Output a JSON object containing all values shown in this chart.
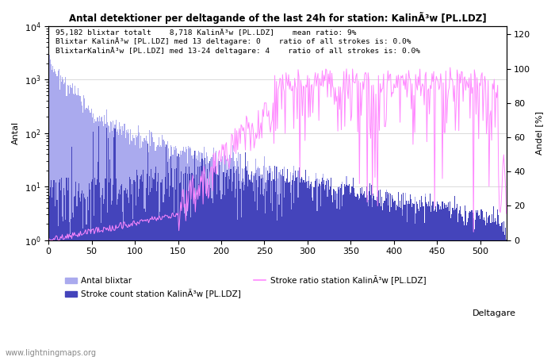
{
  "title": "Antal detektioner per deltagande of the last 24h for station: KalinÃ³w [PL.LDZ]",
  "xlabel": "Deltagare",
  "ylabel_left": "Antal",
  "ylabel_right": "Andel [%]",
  "annotation_lines": [
    "95,182 blixtar totalt    8,718 KalinÃ³w [PL.LDZ]    mean ratio: 9%",
    "Blixtar KalinÃ³w [PL.LDZ] med 13 deltagare: 0    ratio of all strokes is: 0.0%",
    "BlixtarKalinÃ³w [PL.LDZ] med 13-24 deltagare: 4    ratio of all strokes is: 0.0%"
  ],
  "n_participants": 530,
  "watermark": "www.lightningmaps.org",
  "legend_label_blixtar": "Antal blixtar",
  "legend_label_stroke": "Stroke count station KalinÃ³w [PL.LDZ]",
  "legend_label_ratio": "Stroke ratio station KalinÃ³w [PL.LDZ]",
  "bar_fill_color": "#aaaaee",
  "bar_stroke_color": "#4444bb",
  "ratio_line_color": "#ff88ff",
  "background_color": "#ffffff",
  "xlim": [
    0,
    530
  ],
  "ylim_left": [
    1,
    10000
  ],
  "ylim_right": [
    0,
    125
  ],
  "yticks_right": [
    0,
    20,
    40,
    60,
    80,
    100,
    120
  ],
  "xticks": [
    0,
    50,
    100,
    150,
    200,
    250,
    300,
    350,
    400,
    450,
    500
  ],
  "grid_color": "#cccccc"
}
